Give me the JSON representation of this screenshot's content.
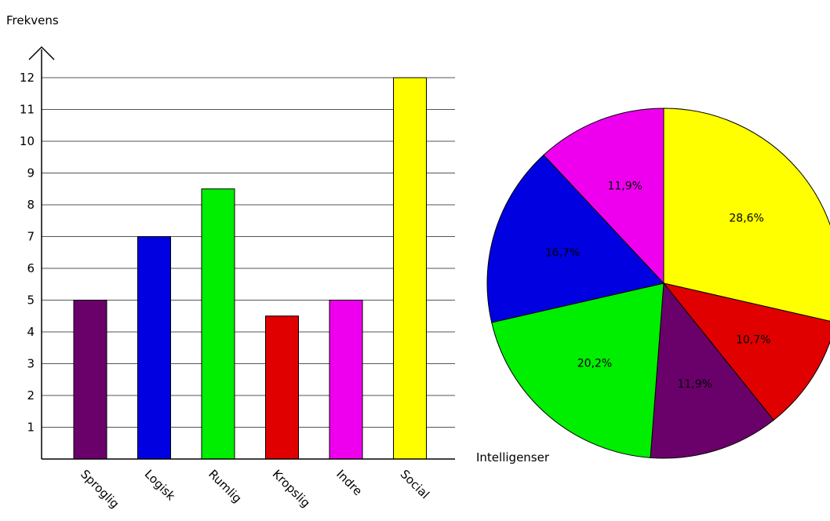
{
  "chart_data": [
    {
      "type": "bar",
      "ylabel": "Frekvens",
      "xlabel": "Intelligenser",
      "ylim": [
        0,
        12
      ],
      "yticks": [
        "1",
        "2",
        "3",
        "4",
        "5",
        "6",
        "7",
        "8",
        "9",
        "10",
        "11",
        "12"
      ],
      "grid": true,
      "categories": [
        "Sproglig",
        "Logisk",
        "Rumlig",
        "Kropslig",
        "Indre",
        "Social"
      ],
      "values": [
        5,
        7,
        8.5,
        4.5,
        5,
        12
      ],
      "colors": [
        "#6a006a",
        "#0000e0",
        "#00ee00",
        "#e00000",
        "#ee00ee",
        "#ffff00"
      ]
    },
    {
      "type": "pie",
      "slices": [
        {
          "category": "Social",
          "value": 28.6,
          "label": "28,6%",
          "color": "#ffff00"
        },
        {
          "category": "Kropslig",
          "value": 10.7,
          "label": "10,7%",
          "color": "#e00000"
        },
        {
          "category": "Sproglig",
          "value": 11.9,
          "label": "11,9%",
          "color": "#6a006a"
        },
        {
          "category": "Rumlig",
          "value": 20.2,
          "label": "20,2%",
          "color": "#00ee00"
        },
        {
          "category": "Logisk",
          "value": 16.7,
          "label": "16,7%",
          "color": "#0000e0"
        },
        {
          "category": "Indre",
          "value": 11.9,
          "label": "11,9%",
          "color": "#ee00ee"
        }
      ]
    }
  ]
}
